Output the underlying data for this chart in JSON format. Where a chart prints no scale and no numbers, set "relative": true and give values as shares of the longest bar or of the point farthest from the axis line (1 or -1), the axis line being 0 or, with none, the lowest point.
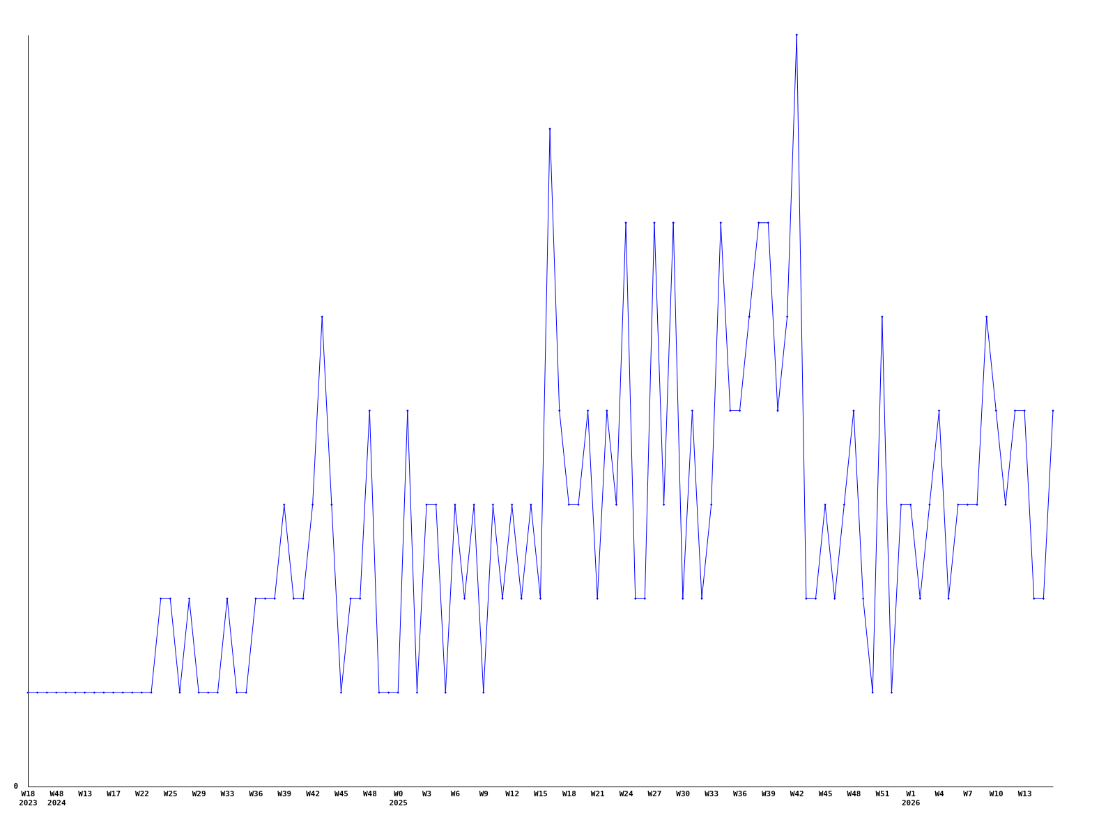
{
  "chart_data": {
    "type": "line",
    "relative": true,
    "marker": "diamond",
    "line_style": "solid",
    "grid": false,
    "annotations": [
      "0"
    ],
    "categories": [
      "W18\n2023",
      null,
      null,
      "W48\n2024",
      null,
      null,
      "W13",
      null,
      null,
      "W17",
      null,
      null,
      "W22",
      null,
      null,
      "W25",
      null,
      null,
      "W29",
      null,
      null,
      "W33",
      null,
      null,
      "W36",
      null,
      null,
      "W39",
      null,
      null,
      "W42",
      null,
      null,
      "W45",
      null,
      null,
      "W48",
      null,
      null,
      "W0\n2025",
      null,
      null,
      "W3",
      null,
      null,
      "W6",
      null,
      null,
      "W9",
      null,
      null,
      "W12",
      null,
      null,
      "W15",
      null,
      null,
      "W18",
      null,
      null,
      "W21",
      null,
      null,
      "W24",
      null,
      null,
      "W27",
      null,
      null,
      "W30",
      null,
      null,
      "W33",
      null,
      null,
      "W36",
      null,
      null,
      "W39",
      null,
      null,
      "W42",
      null,
      null,
      "W45",
      null,
      null,
      "W48",
      null,
      null,
      "W51",
      null,
      null,
      "W1\n2026",
      null,
      null,
      "W4",
      null,
      null,
      "W7",
      null,
      null,
      "W10",
      null,
      null,
      "W13",
      null,
      null,
      null
    ],
    "series": [
      {
        "color": "#0000ff",
        "values": [
          0.125,
          0.125,
          0.125,
          0.125,
          0.125,
          0.125,
          0.125,
          0.125,
          0.125,
          0.125,
          0.125,
          0.125,
          0.125,
          0.125,
          0.25,
          0.25,
          0.125,
          0.25,
          0.125,
          0.125,
          0.125,
          0.25,
          0.125,
          0.125,
          0.25,
          0.25,
          0.25,
          0.375,
          0.25,
          0.25,
          0.375,
          0.625,
          0.375,
          0.125,
          0.25,
          0.25,
          0.5,
          0.125,
          0.125,
          0.125,
          0.5,
          0.125,
          0.375,
          0.375,
          0.125,
          0.375,
          0.25,
          0.375,
          0.125,
          0.375,
          0.25,
          0.375,
          0.25,
          0.375,
          0.25,
          0.875,
          0.5,
          0.375,
          0.375,
          0.5,
          0.25,
          0.5,
          0.375,
          0.75,
          0.25,
          0.25,
          0.75,
          0.375,
          0.75,
          0.25,
          0.5,
          0.25,
          0.375,
          0.75,
          0.5,
          0.5,
          0.625,
          0.75,
          0.75,
          0.5,
          0.625,
          1,
          0.25,
          0.25,
          0.375,
          0.25,
          0.375,
          0.5,
          0.25,
          0.125,
          0.625,
          0.125,
          0.375,
          0.375,
          0.25,
          0.375,
          0.5,
          0.25,
          0.375,
          0.375,
          0.375,
          0.625,
          0.5,
          0.375,
          0.5,
          0.5,
          0.25,
          0.25,
          0.5
        ]
      }
    ]
  }
}
